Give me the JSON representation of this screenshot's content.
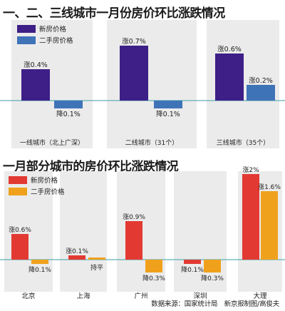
{
  "titles": {
    "chart1": "一、二、三线城市一月份房价环比涨跌情况",
    "chart2": "一月部分城市的房价环比涨跌情况"
  },
  "source": "数据来源：国家统计局　新京报制图/高俊夫",
  "chart_data": [
    {
      "type": "bar",
      "title": "一、二、三线城市一月份房价环比涨跌情况",
      "categories": [
        "一线城市（北上广深）",
        "二线城市（31个）",
        "三线城市（35个）"
      ],
      "series": [
        {
          "name": "新房价格",
          "color": "#3d1f87",
          "values": [
            0.4,
            0.7,
            0.6
          ],
          "labels": [
            "涨0.4%",
            "涨0.7%",
            "涨0.6%"
          ]
        },
        {
          "name": "二手房价格",
          "color": "#3f73b8",
          "values": [
            -0.1,
            -0.1,
            0.2
          ],
          "labels": [
            "降0.1%",
            "降0.1%",
            "涨0.2%"
          ]
        }
      ],
      "ylim": [
        -0.2,
        0.9
      ]
    },
    {
      "type": "bar",
      "title": "一月部分城市的房价环比涨跌情况",
      "categories": [
        "北京",
        "上海",
        "广州",
        "深圳",
        "大理"
      ],
      "series": [
        {
          "name": "新房价格",
          "color": "#e23a32",
          "values": [
            0.6,
            0.1,
            0.9,
            -0.1,
            2.0
          ],
          "labels": [
            "涨0.6%",
            "涨0.1%",
            "涨0.9%",
            "降0.1%",
            "涨2%"
          ]
        },
        {
          "name": "二手房价格",
          "color": "#f0a11c",
          "values": [
            -0.1,
            0.0,
            -0.3,
            -0.3,
            1.6
          ],
          "labels": [
            "降0.1%",
            "持平",
            "降0.3%",
            "降0.3%",
            "涨1.6%"
          ]
        }
      ],
      "ylim": [
        -0.4,
        2.2
      ]
    }
  ]
}
